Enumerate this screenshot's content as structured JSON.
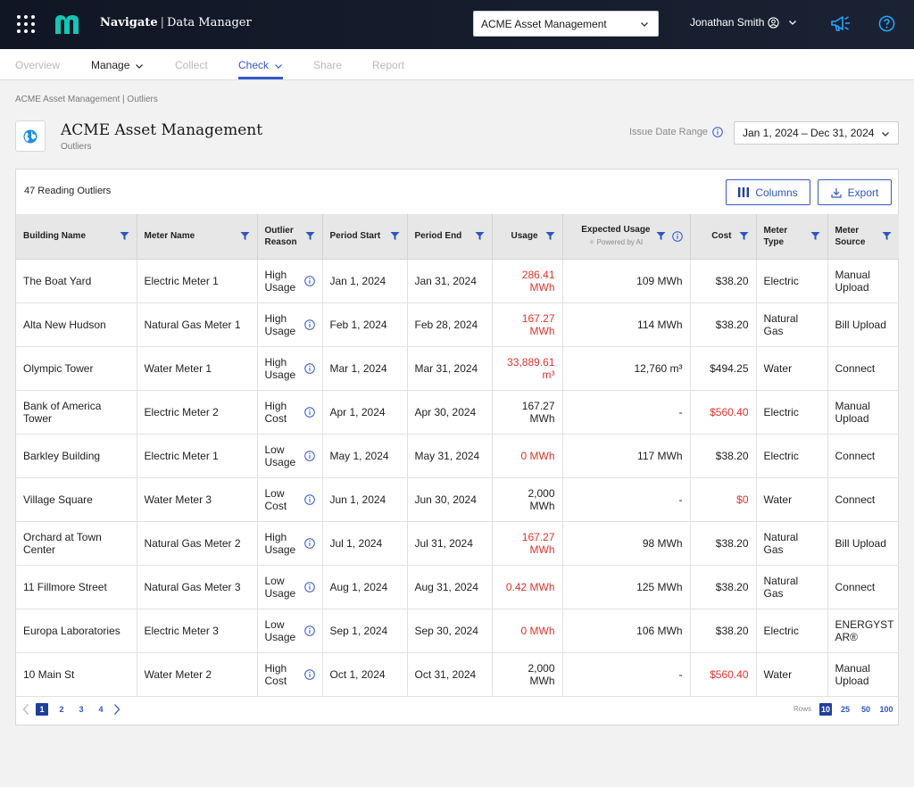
{
  "header": {
    "app_name": "Navigate",
    "app_section": "Data Manager",
    "org_selector": "ACME Asset Management",
    "user_name": "Jonathan Smith",
    "icons": [
      "grid-menu-icon",
      "brand-logo",
      "user-circle-icon",
      "chevron-down-icon",
      "megaphone-icon",
      "help-icon"
    ]
  },
  "nav": {
    "tabs": [
      {
        "label": "Overview"
      },
      {
        "label": "Manage"
      },
      {
        "label": "Collect"
      },
      {
        "label": "Check"
      },
      {
        "label": "Share"
      },
      {
        "label": "Report"
      }
    ],
    "active_tab": "Check"
  },
  "breadcrumb": "ACME Asset Management | Outliers",
  "page": {
    "title": "ACME Asset Management",
    "subtitle": "Outliers",
    "date_range_label": "Issue Date Range",
    "date_range_value": "Jan 1, 2024 – Dec 31, 2024"
  },
  "card": {
    "title": "47 Reading Outliers",
    "columns_button": "Columns",
    "export_button": "Export"
  },
  "table": {
    "headers": {
      "building": "Building Name",
      "meter": "Meter Name",
      "reason_1": "Outlier",
      "reason_2": "Reason",
      "period_start": "Period Start",
      "period_end": "Period End",
      "usage": "Usage",
      "expected": "Expected Usage",
      "expected_note": "Powered by AI",
      "cost": "Cost",
      "type_1": "Meter",
      "type_2": "Type",
      "source_1": "Meter",
      "source_2": "Source"
    },
    "rows": [
      {
        "building_1": "The Boat Yard",
        "building_2": "",
        "meter": "Electric Meter 1",
        "reason_1": "High",
        "reason_2": "Usage",
        "start": "Jan 1, 2024",
        "end": "Jan 31, 2024",
        "usage_1": "286.41",
        "usage_2": "MWh",
        "expected": "109 MWh",
        "cost": "$38.20",
        "type_1": "Electric",
        "type_2": "",
        "source_1": "Manual",
        "source_2": "Upload"
      },
      {
        "building_1": "Alta New Hudson",
        "building_2": "",
        "meter": "Natural Gas Meter 1",
        "reason_1": "High",
        "reason_2": "Usage",
        "start": "Feb 1, 2024",
        "end": "Feb 28, 2024",
        "usage_1": "167.27",
        "usage_2": "MWh",
        "expected": "114 MWh",
        "cost": "$38.20",
        "type_1": "Natural",
        "type_2": "Gas",
        "source_1": "Bill Upload",
        "source_2": ""
      },
      {
        "building_1": "Olympic Tower",
        "building_2": "",
        "meter": "Water Meter 1",
        "reason_1": "High",
        "reason_2": "Usage",
        "start": "Mar 1, 2024",
        "end": "Mar 31, 2024",
        "usage_1": "33,889.61",
        "usage_2": "m³",
        "expected": "12,760 m³",
        "cost": "$494.25",
        "type_1": "Water",
        "type_2": "",
        "source_1": "Connect",
        "source_2": ""
      },
      {
        "building_1": "Bank of America",
        "building_2": "Tower",
        "meter": "Electric Meter 2",
        "reason_1": "High",
        "reason_2": "Cost",
        "start": "Apr 1, 2024",
        "end": "Apr 30, 2024",
        "usage_1": "167.27",
        "usage_2": "MWh",
        "expected": "-",
        "cost": "$560.40",
        "type_1": "Electric",
        "type_2": "",
        "source_1": "Manual",
        "source_2": "Upload"
      },
      {
        "building_1": "Barkley Building",
        "building_2": "",
        "meter": "Electric Meter 1",
        "reason_1": "Low",
        "reason_2": "Usage",
        "start": "May 1, 2024",
        "end": "May 31, 2024",
        "usage_1": "0 MWh",
        "usage_2": "",
        "expected": "117 MWh",
        "cost": "$38.20",
        "type_1": "Electric",
        "type_2": "",
        "source_1": "Connect",
        "source_2": ""
      },
      {
        "building_1": "Village Square",
        "building_2": "",
        "meter": "Water Meter 3",
        "reason_1": "Low",
        "reason_2": "Cost",
        "start": "Jun 1, 2024",
        "end": "Jun 30, 2024",
        "usage_1": "2,000",
        "usage_2": "MWh",
        "expected": "-",
        "cost": "$0",
        "type_1": "Water",
        "type_2": "",
        "source_1": "Connect",
        "source_2": ""
      },
      {
        "building_1": "Orchard at Town",
        "building_2": "Center",
        "meter": "Natural Gas Meter 2",
        "reason_1": "High",
        "reason_2": "Usage",
        "start": "Jul 1, 2024",
        "end": "Jul 31, 2024",
        "usage_1": "167.27",
        "usage_2": "MWh",
        "expected": "98 MWh",
        "cost": "$38.20",
        "type_1": "Natural",
        "type_2": "Gas",
        "source_1": "Bill Upload",
        "source_2": ""
      },
      {
        "building_1": "11 Fillmore Street",
        "building_2": "",
        "meter": "Natural Gas Meter 3",
        "reason_1": "Low",
        "reason_2": "Usage",
        "start": "Aug 1, 2024",
        "end": "Aug 31, 2024",
        "usage_1": "0.42 MWh",
        "usage_2": "",
        "expected": "125 MWh",
        "cost": "$38.20",
        "type_1": "Natural",
        "type_2": "Gas",
        "source_1": "Connect",
        "source_2": ""
      },
      {
        "building_1": "Europa Laboratories",
        "building_2": "",
        "meter": "Electric Meter 3",
        "reason_1": "Low",
        "reason_2": "Usage",
        "start": "Sep 1, 2024",
        "end": "Sep 30, 2024",
        "usage_1": "0 MWh",
        "usage_2": "",
        "expected": "106 MWh",
        "cost": "$38.20",
        "type_1": "Electric",
        "type_2": "",
        "source_1": "ENERGYST",
        "source_2": "AR®"
      },
      {
        "building_1": "10 Main St",
        "building_2": "",
        "meter": "Water Meter 2",
        "reason_1": "High",
        "reason_2": "Cost",
        "start": "Oct 1, 2024",
        "end": "Oct 31, 2024",
        "usage_1": "2,000",
        "usage_2": "MWh",
        "expected": "-",
        "cost": "$560.40",
        "type_1": "Water",
        "type_2": "",
        "source_1": "Manual",
        "source_2": "Upload"
      }
    ],
    "usage_red": [
      true,
      true,
      true,
      false,
      true,
      false,
      true,
      true,
      true,
      false
    ],
    "cost_red": [
      false,
      false,
      false,
      true,
      false,
      true,
      false,
      false,
      false,
      true
    ]
  },
  "pagination": {
    "pages": [
      "1",
      "2",
      "3",
      "4"
    ],
    "current_page": "1",
    "rows_label": "Rows",
    "row_options": [
      "10",
      "25",
      "50",
      "100"
    ],
    "current_rows": "10"
  },
  "colors": {
    "accent": "#3359c9",
    "alert": "#e0342a",
    "header_bg": "#101624",
    "page_active": "#1f3f9e"
  }
}
